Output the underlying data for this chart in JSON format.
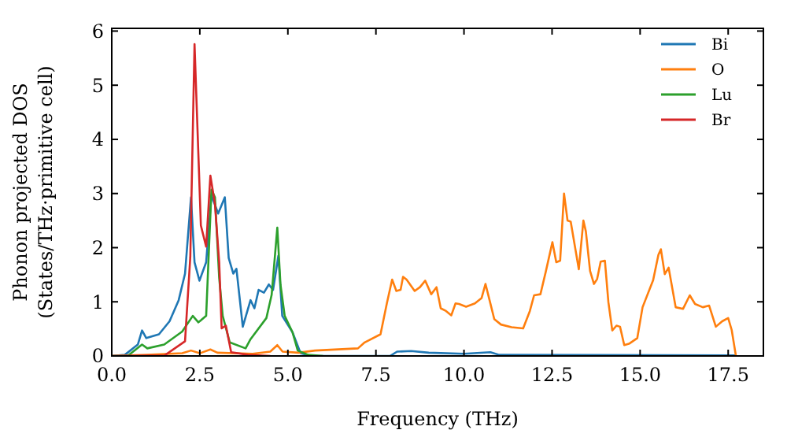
{
  "chart_data": {
    "type": "line",
    "xlabel": "Frequency (THz)",
    "ylabel": "Phonon projected DOS\n(States/THz·primitive cell)",
    "xlim": [
      0,
      18.5
    ],
    "ylim": [
      0,
      6.05
    ],
    "xticks": [
      {
        "value": 0,
        "label": "0.0"
      },
      {
        "value": 2.5,
        "label": "2.5"
      },
      {
        "value": 5,
        "label": "5.0"
      },
      {
        "value": 7.5,
        "label": "7.5"
      },
      {
        "value": 10,
        "label": "10.0"
      },
      {
        "value": 12.5,
        "label": "12.5"
      },
      {
        "value": 15,
        "label": "15.0"
      },
      {
        "value": 17.5,
        "label": "17.5"
      }
    ],
    "yticks": [
      0,
      1,
      2,
      3,
      4,
      5,
      6
    ],
    "legend": "top right",
    "grid": false,
    "series": [
      {
        "name": "Bi",
        "color": "#1f77b4",
        "x": [
          0,
          0.37,
          0.74,
          0.86,
          0.98,
          1.34,
          1.64,
          1.9,
          2.08,
          2.25,
          2.35,
          2.49,
          2.68,
          2.83,
          3.02,
          3.21,
          3.32,
          3.45,
          3.54,
          3.72,
          3.94,
          4.05,
          4.17,
          4.32,
          4.46,
          4.58,
          4.73,
          4.84,
          5.13,
          5.36,
          5.66,
          7.9,
          8.1,
          8.5,
          9,
          10,
          10.75,
          11,
          17.7
        ],
        "values": [
          0,
          0.02,
          0.21,
          0.47,
          0.33,
          0.4,
          0.64,
          1.03,
          1.52,
          2.93,
          1.73,
          1.39,
          1.73,
          2.97,
          2.63,
          2.93,
          1.81,
          1.52,
          1.61,
          0.54,
          1.03,
          0.88,
          1.22,
          1.17,
          1.32,
          1.22,
          1.85,
          0.74,
          0.44,
          0.05,
          0,
          0,
          0.08,
          0.09,
          0.06,
          0.04,
          0.07,
          0.02,
          0.01
        ]
      },
      {
        "name": "O",
        "color": "#ff7f0e",
        "x": [
          0,
          1,
          2,
          2.25,
          2.5,
          2.8,
          3,
          4,
          4.5,
          4.7,
          4.85,
          5.3,
          5.77,
          6.99,
          7.18,
          7.63,
          7.81,
          7.96,
          8.08,
          8.2,
          8.27,
          8.37,
          8.6,
          8.75,
          8.9,
          9.07,
          9.22,
          9.34,
          9.49,
          9.64,
          9.76,
          9.86,
          10.06,
          10.31,
          10.5,
          10.61,
          10.73,
          10.86,
          11.05,
          11.35,
          11.68,
          11.87,
          11.99,
          12.17,
          12.32,
          12.51,
          12.62,
          12.73,
          12.84,
          12.94,
          13.03,
          13.26,
          13.39,
          13.46,
          13.58,
          13.69,
          13.78,
          13.88,
          14,
          14.1,
          14.21,
          14.33,
          14.43,
          14.55,
          14.7,
          14.92,
          15.07,
          15.37,
          15.52,
          15.59,
          15.7,
          15.81,
          16.01,
          16.22,
          16.41,
          16.56,
          16.78,
          16.96,
          17.15,
          17.33,
          17.5,
          17.6,
          17.72
        ],
        "values": [
          0,
          0.02,
          0.05,
          0.1,
          0.05,
          0.12,
          0.06,
          0.04,
          0.08,
          0.2,
          0.08,
          0.06,
          0.1,
          0.14,
          0.25,
          0.4,
          0.97,
          1.41,
          1.2,
          1.22,
          1.46,
          1.41,
          1.2,
          1.27,
          1.39,
          1.14,
          1.27,
          0.88,
          0.83,
          0.75,
          0.97,
          0.96,
          0.91,
          0.97,
          1.07,
          1.33,
          1.02,
          0.68,
          0.58,
          0.53,
          0.51,
          0.83,
          1.12,
          1.14,
          1.55,
          2.1,
          1.73,
          1.76,
          3,
          2.5,
          2.48,
          1.6,
          2.5,
          2.3,
          1.57,
          1.33,
          1.42,
          1.74,
          1.76,
          0.99,
          0.47,
          0.56,
          0.54,
          0.2,
          0.23,
          0.33,
          0.9,
          1.4,
          1.87,
          1.97,
          1.51,
          1.63,
          0.9,
          0.87,
          1.12,
          0.96,
          0.9,
          0.93,
          0.54,
          0.64,
          0.7,
          0.48,
          0
        ]
      },
      {
        "name": "Lu",
        "color": "#2ca02c",
        "x": [
          0,
          0.45,
          0.86,
          1.01,
          1.49,
          2,
          2.3,
          2.46,
          2.68,
          2.83,
          2.93,
          3.05,
          3.15,
          3.35,
          3.8,
          3.94,
          4.39,
          4.54,
          4.7,
          4.79,
          4.91,
          5.13,
          5.28,
          5.58,
          6
        ],
        "values": [
          0,
          0,
          0.21,
          0.14,
          0.21,
          0.45,
          0.74,
          0.62,
          0.74,
          3.07,
          2.93,
          1.44,
          0.74,
          0.25,
          0.14,
          0.31,
          0.7,
          1.13,
          2.37,
          1.32,
          0.74,
          0.44,
          0.1,
          0.02,
          0
        ]
      },
      {
        "name": "Br",
        "color": "#d62728",
        "x": [
          0,
          1.5,
          2.08,
          2.23,
          2.35,
          2.53,
          2.68,
          2.8,
          2.93,
          3.05,
          3.12,
          3.24,
          3.39,
          3.87,
          4.5
        ],
        "values": [
          0,
          0.01,
          0.27,
          1.83,
          5.76,
          2.41,
          2.02,
          3.33,
          2.8,
          1.73,
          0.51,
          0.56,
          0.07,
          0.02,
          0
        ]
      }
    ]
  }
}
